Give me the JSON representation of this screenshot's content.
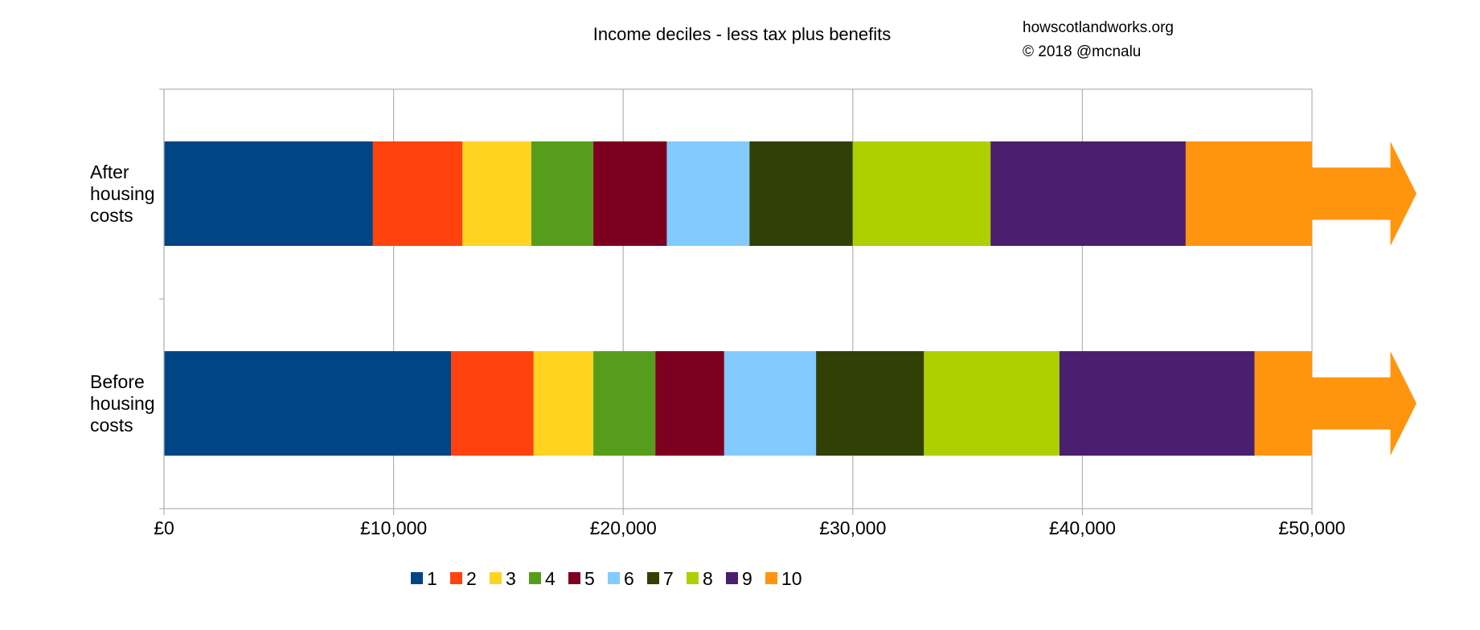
{
  "chart_data": {
    "type": "bar",
    "orientation": "horizontal",
    "stacked": true,
    "title": "Income deciles - less tax plus benefits",
    "annotations": [
      "howscotlandworks.org",
      "© 2018  @mcnalu"
    ],
    "categories": [
      "After housing costs",
      "Before housing costs"
    ],
    "category_label_lines": [
      [
        "After",
        "housing",
        "costs"
      ],
      [
        "Before",
        "housing",
        "costs"
      ]
    ],
    "series": [
      {
        "name": "1",
        "color": "#004586",
        "values": [
          9100,
          12500
        ]
      },
      {
        "name": "2",
        "color": "#ff420e",
        "values": [
          3900,
          3600
        ]
      },
      {
        "name": "3",
        "color": "#ffd320",
        "values": [
          3000,
          2600
        ]
      },
      {
        "name": "4",
        "color": "#579d1c",
        "values": [
          2700,
          2700
        ]
      },
      {
        "name": "5",
        "color": "#7e0021",
        "values": [
          3200,
          3000
        ]
      },
      {
        "name": "6",
        "color": "#83caff",
        "values": [
          3600,
          4000
        ]
      },
      {
        "name": "7",
        "color": "#314004",
        "values": [
          4500,
          4700
        ]
      },
      {
        "name": "8",
        "color": "#aecf00",
        "values": [
          6000,
          5900
        ]
      },
      {
        "name": "9",
        "color": "#4b1f6f",
        "values": [
          8500,
          8500
        ]
      },
      {
        "name": "10",
        "color": "#ff950e",
        "values": [
          5500,
          2500
        ]
      }
    ],
    "open_ended_series": "10",
    "xlim": [
      0,
      50000
    ],
    "x_ticks": [
      0,
      10000,
      20000,
      30000,
      40000,
      50000
    ],
    "x_tick_labels": [
      "£0",
      "£10,000",
      "£20,000",
      "£30,000",
      "£40,000",
      "£50,000"
    ],
    "xlabel": "",
    "ylabel": "",
    "grid": "vertical",
    "legend_position": "bottom"
  }
}
